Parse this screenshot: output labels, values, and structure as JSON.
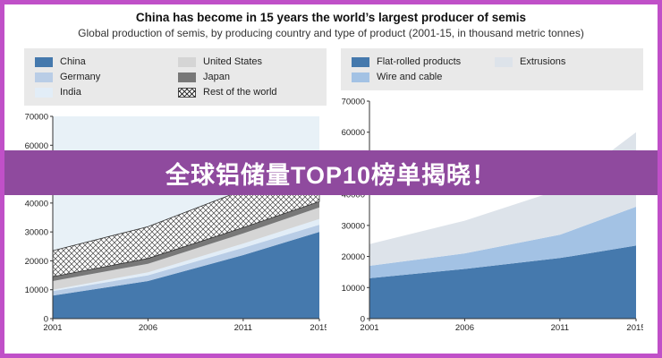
{
  "frame": {
    "border_color": "#c050c8"
  },
  "banner": {
    "text": "全球铝储量TOP10榜单揭晓！",
    "bg": "#8f4a9e",
    "text_color": "#ffffff"
  },
  "header": {
    "title": "China has become in 15 years the world’s largest producer of semis",
    "subtitle": "Global production of semis, by producing country and type of product (2001-15, in thousand metric tonnes)"
  },
  "chart_data": [
    {
      "type": "area",
      "stacked": true,
      "name": "production-by-country",
      "x": [
        2001,
        2006,
        2011,
        2015
      ],
      "x_ticks": [
        2001,
        2006,
        2011,
        2015
      ],
      "ylim": [
        0,
        70000
      ],
      "y_ticks": [
        0,
        10000,
        20000,
        30000,
        40000,
        50000,
        60000,
        70000
      ],
      "legend_rows": 3,
      "plot_bg": "#e8f1f7",
      "series": [
        {
          "name": "China",
          "color": "#4579ad",
          "values": [
            8000,
            13000,
            22000,
            30000
          ]
        },
        {
          "name": "Germany",
          "color": "#b9cde6",
          "values": [
            1500,
            2000,
            2500,
            2500
          ]
        },
        {
          "name": "India",
          "color": "#e2edf7",
          "values": [
            500,
            1000,
            1500,
            2000
          ]
        },
        {
          "name": "United States",
          "color": "#d5d5d5",
          "values": [
            3000,
            3000,
            3500,
            4000
          ]
        },
        {
          "name": "Japan",
          "color": "#787878",
          "values": [
            1500,
            1800,
            2000,
            2000
          ]
        },
        {
          "name": "Rest of the world",
          "color": "crosshatch",
          "values": [
            9000,
            11000,
            13000,
            17000
          ]
        }
      ]
    },
    {
      "type": "area",
      "stacked": true,
      "name": "production-by-product",
      "x": [
        2001,
        2006,
        2011,
        2015
      ],
      "x_ticks": [
        2001,
        2006,
        2011,
        2015
      ],
      "ylim": [
        0,
        70000
      ],
      "y_ticks": [
        0,
        10000,
        20000,
        30000,
        40000,
        50000,
        60000,
        70000
      ],
      "legend_rows": 2,
      "plot_bg": "#ffffff",
      "series": [
        {
          "name": "Flat-rolled products",
          "color": "#4579ad",
          "values": [
            13000,
            16000,
            19500,
            23500
          ]
        },
        {
          "name": "Wire and cable",
          "color": "#a3c2e4",
          "values": [
            4000,
            5000,
            7500,
            12500
          ]
        },
        {
          "name": "Extrusions",
          "color": "#dde3ea",
          "values": [
            7000,
            10500,
            14500,
            24000
          ]
        }
      ]
    }
  ]
}
